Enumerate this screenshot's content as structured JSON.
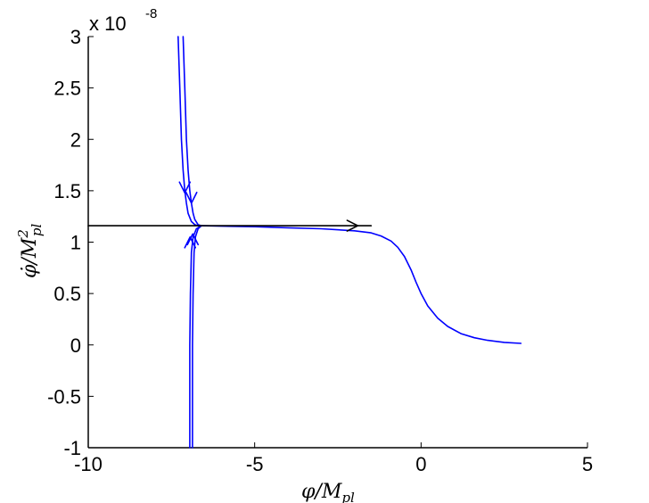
{
  "chart_data": {
    "type": "line",
    "title": "",
    "xlabel_main": "φ/M",
    "xlabel_sub": "pl",
    "ylabel_main": "φ̇/M",
    "ylabel_sup": "2",
    "ylabel_sub": "pl",
    "y_multiplier_base": "x 10",
    "y_multiplier_exp": "-8",
    "xlim": [
      -10,
      5
    ],
    "ylim": [
      -1,
      3
    ],
    "y_scale_note": "values in units of 1e-8",
    "grid": false,
    "legend": "none",
    "x_ticks": [
      "-10",
      "-5",
      "0",
      "5"
    ],
    "x_tick_values": [
      -10,
      -5,
      0,
      5
    ],
    "y_ticks": [
      "-1",
      "-0.5",
      "0",
      "0.5",
      "1",
      "1.5",
      "2",
      "2.5",
      "3"
    ],
    "y_tick_values": [
      -1,
      -0.5,
      0,
      0.5,
      1,
      1.5,
      2,
      2.5,
      3
    ],
    "series": [
      {
        "color": "#0000ff",
        "x": [
          -7.3,
          -7.25,
          -7.2,
          -7.15,
          -7.1,
          -7.05,
          -7.0,
          -6.9,
          -6.8,
          -6.7,
          -6.6
        ],
        "y": [
          3.0,
          2.5,
          2.0,
          1.7,
          1.5,
          1.38,
          1.28,
          1.2,
          1.17,
          1.16,
          1.16
        ]
      },
      {
        "color": "#0000ff",
        "x": [
          -7.15,
          -7.1,
          -7.05,
          -7.0,
          -6.95,
          -6.9,
          -6.85,
          -6.8,
          -6.7,
          -6.6
        ],
        "y": [
          3.0,
          2.5,
          2.0,
          1.7,
          1.5,
          1.38,
          1.28,
          1.22,
          1.17,
          1.16
        ]
      },
      {
        "color": "#0000ff",
        "x": [
          -6.95,
          -6.95,
          -6.95,
          -6.93,
          -6.9,
          -6.85,
          -6.75,
          -6.6
        ],
        "y": [
          -1.0,
          -0.5,
          0.0,
          0.5,
          0.9,
          1.05,
          1.13,
          1.16
        ]
      },
      {
        "color": "#0000ff",
        "x": [
          -6.87,
          -6.87,
          -6.87,
          -6.85,
          -6.82,
          -6.78,
          -6.7,
          -6.6
        ],
        "y": [
          -1.0,
          -0.5,
          0.0,
          0.5,
          0.9,
          1.05,
          1.13,
          1.16
        ]
      },
      {
        "color": "#0000ff",
        "x": [
          -6.6,
          -6.0,
          -5.0,
          -4.0,
          -3.0,
          -2.0,
          -1.5,
          -1.2,
          -0.9,
          -0.7,
          -0.5,
          -0.3,
          -0.15,
          0.0,
          0.2,
          0.5,
          0.8,
          1.2,
          1.6,
          2.0,
          2.5,
          3.0
        ],
        "y": [
          1.16,
          1.155,
          1.15,
          1.14,
          1.13,
          1.11,
          1.09,
          1.06,
          1.01,
          0.95,
          0.86,
          0.73,
          0.61,
          0.5,
          0.38,
          0.26,
          0.18,
          0.11,
          0.07,
          0.045,
          0.025,
          0.015
        ]
      },
      {
        "color": "#000000",
        "x": [
          -10.0,
          -1.5
        ],
        "y": [
          1.16,
          1.16
        ]
      }
    ],
    "arrows": [
      {
        "color": "#0000ff",
        "x": -7.1,
        "y": 1.48,
        "dir": "down"
      },
      {
        "color": "#0000ff",
        "x": -6.9,
        "y": 1.38,
        "dir": "down"
      },
      {
        "color": "#0000ff",
        "x": -6.94,
        "y": 1.05,
        "dir": "up"
      },
      {
        "color": "#0000ff",
        "x": -6.86,
        "y": 1.08,
        "dir": "up"
      },
      {
        "color": "#000000",
        "x": -1.9,
        "y": 1.16,
        "dir": "right"
      }
    ]
  }
}
